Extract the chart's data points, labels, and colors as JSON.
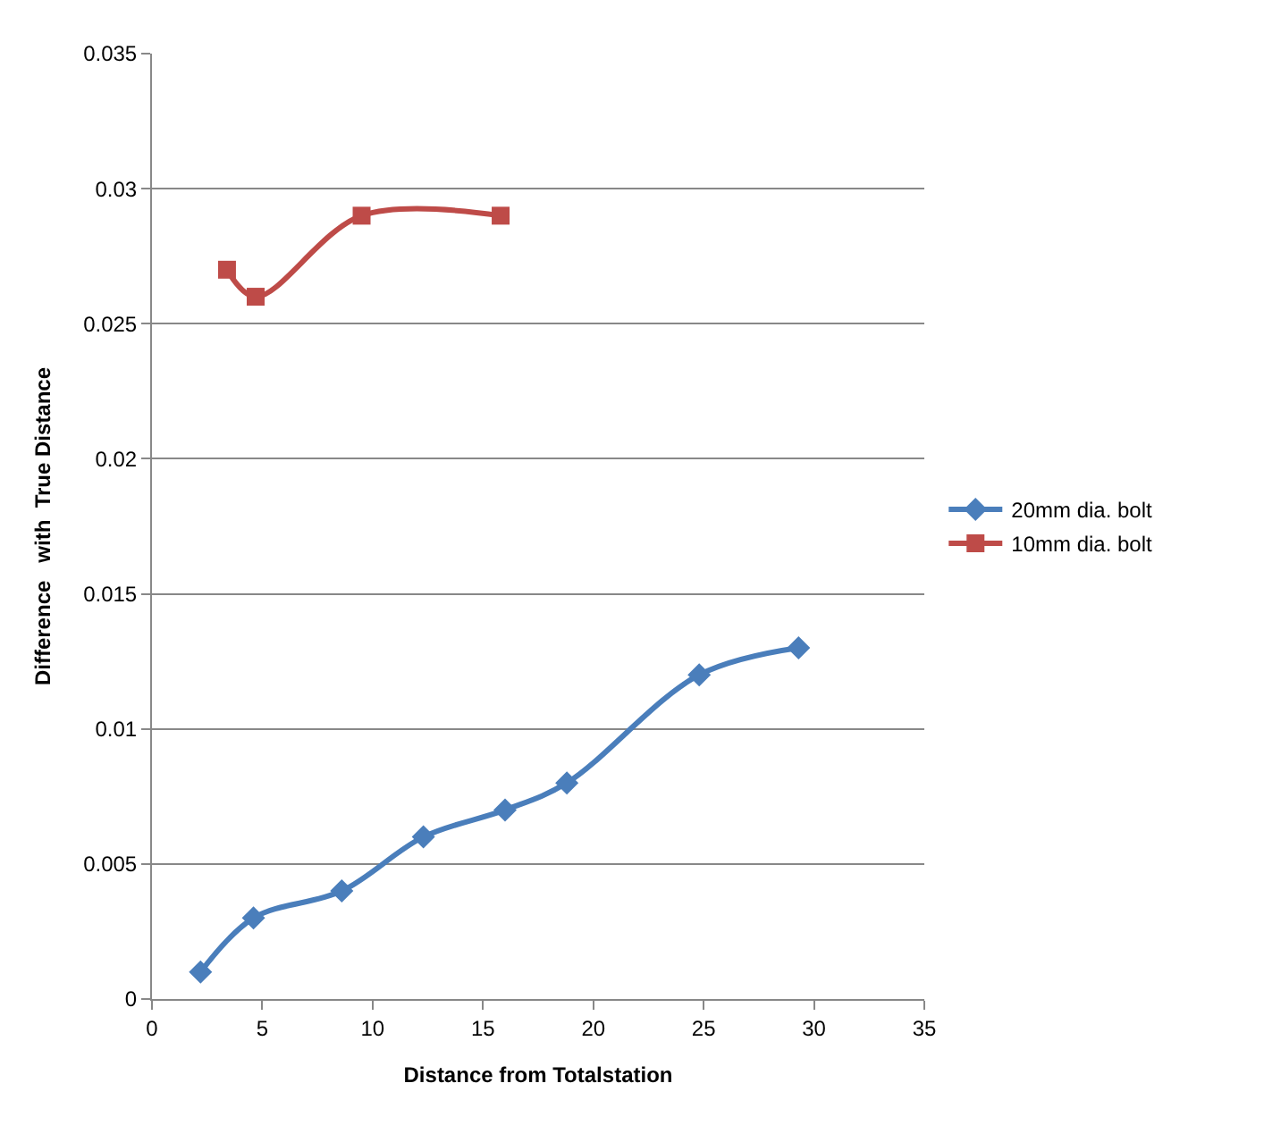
{
  "chart_data": {
    "type": "line",
    "xlabel": "Distance from Totalstation",
    "ylabel": "Difference   with  True Distance",
    "xlim": [
      0,
      35
    ],
    "xticks": [
      0,
      5,
      10,
      15,
      20,
      25,
      30,
      35
    ],
    "ylim": [
      0,
      0.035
    ],
    "yticks": [
      0,
      0.005,
      0.01,
      0.015,
      0.02,
      0.025,
      0.03,
      0.035
    ],
    "grid": "y",
    "legend": "right",
    "series": [
      {
        "name": "20mm dia. bolt",
        "color": "#4a7ebb",
        "marker": "diamond",
        "x": [
          2.2,
          4.6,
          8.6,
          12.3,
          16.0,
          18.8,
          24.8,
          29.3
        ],
        "values": [
          0.001,
          0.003,
          0.004,
          0.006,
          0.007,
          0.008,
          0.012,
          0.013
        ]
      },
      {
        "name": "10mm dia. bolt",
        "color": "#be4b48",
        "marker": "square",
        "x": [
          3.4,
          4.7,
          9.5,
          15.8
        ],
        "values": [
          0.027,
          0.026,
          0.029,
          0.029
        ]
      }
    ]
  }
}
